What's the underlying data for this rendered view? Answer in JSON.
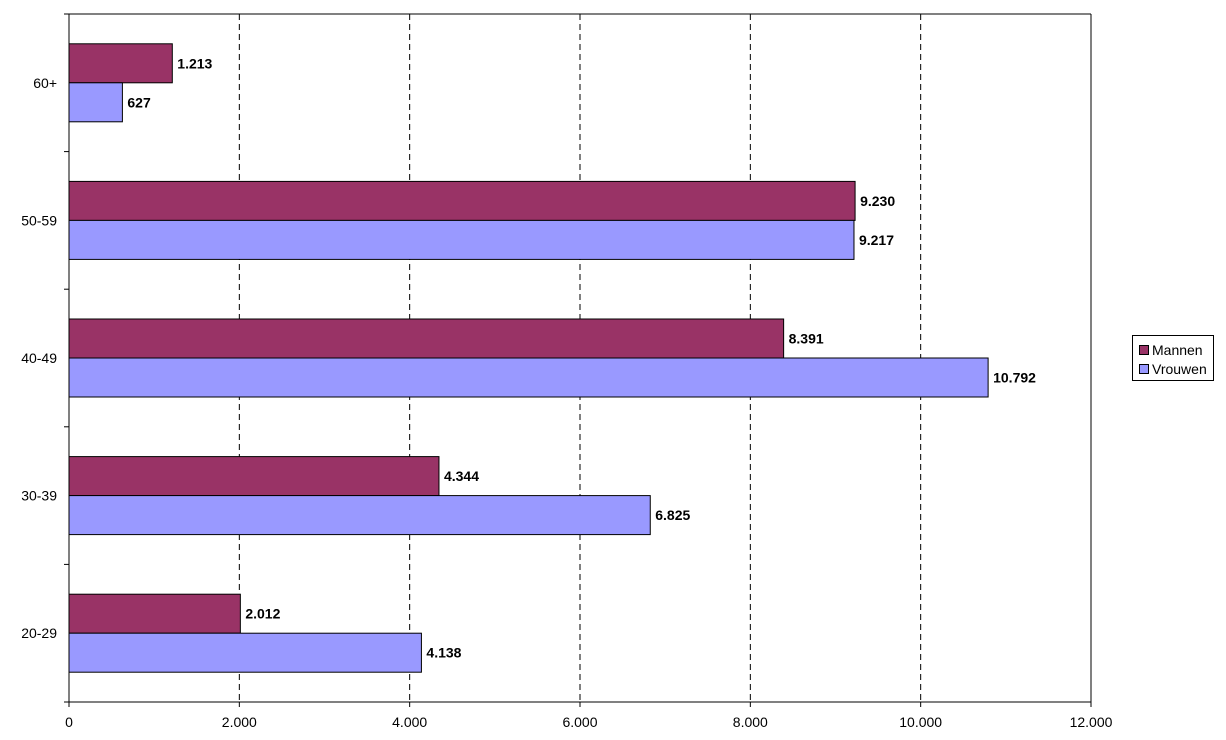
{
  "chart_data": {
    "type": "bar",
    "orientation": "horizontal",
    "categories": [
      "20-29",
      "30-39",
      "40-49",
      "50-59",
      "60+"
    ],
    "series": [
      {
        "name": "Mannen",
        "color": "#993366",
        "values": [
          2012,
          4344,
          8391,
          9230,
          1213
        ],
        "labels": [
          "2.012",
          "4.344",
          "8.391",
          "9.230",
          "1.213"
        ]
      },
      {
        "name": "Vrouwen",
        "color": "#9999FF",
        "values": [
          4138,
          6825,
          10792,
          9217,
          627
        ],
        "labels": [
          "4.138",
          "6.825",
          "10.792",
          "9.217",
          "627"
        ]
      }
    ],
    "xlim": [
      0,
      12000
    ],
    "xticks": [
      0,
      2000,
      4000,
      6000,
      8000,
      10000,
      12000
    ],
    "xtick_labels": [
      "0",
      "2.000",
      "4.000",
      "6.000",
      "8.000",
      "10.000",
      "12.000"
    ],
    "grid": "vertical-dashed",
    "legend_position": "right",
    "title": "",
    "xlabel": "",
    "ylabel": ""
  }
}
